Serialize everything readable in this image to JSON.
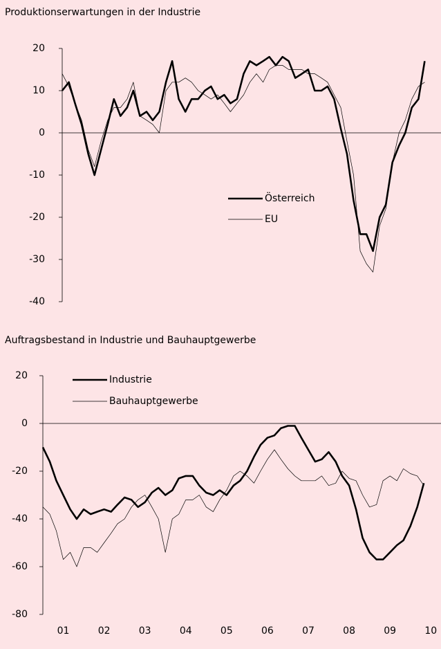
{
  "chart_data": [
    {
      "type": "line",
      "title": "Produktionserwartungen in der Industrie",
      "x": [
        2001,
        2001.17,
        2001.33,
        2001.5,
        2001.67,
        2001.83,
        2002,
        2002.17,
        2002.33,
        2002.5,
        2002.67,
        2002.83,
        2003,
        2003.17,
        2003.33,
        2003.5,
        2003.67,
        2003.83,
        2004,
        2004.17,
        2004.33,
        2004.5,
        2004.67,
        2004.83,
        2005,
        2005.17,
        2005.33,
        2005.5,
        2005.67,
        2005.83,
        2006,
        2006.17,
        2006.33,
        2006.5,
        2006.67,
        2006.83,
        2007,
        2007.17,
        2007.33,
        2007.5,
        2007.67,
        2007.83,
        2008,
        2008.17,
        2008.33,
        2008.5,
        2008.67,
        2008.83,
        2009,
        2009.17,
        2009.33,
        2009.5,
        2009.67,
        2009.83,
        2010,
        2010.17,
        2010.33
      ],
      "series": [
        {
          "name": "Österreich",
          "color": "#000000",
          "values": [
            10,
            12,
            7,
            2,
            -5,
            -10,
            -4,
            2,
            8,
            4,
            6,
            10,
            4,
            5,
            3,
            5,
            12,
            17,
            8,
            5,
            8,
            8,
            10,
            11,
            8,
            9,
            7,
            8,
            14,
            17,
            16,
            17,
            18,
            16,
            18,
            17,
            13,
            14,
            15,
            10,
            10,
            11,
            8,
            1,
            -5,
            -16,
            -24,
            -24,
            -28,
            -20,
            -17,
            -7,
            -3,
            0,
            6,
            8,
            17
          ]
        },
        {
          "name": "EU",
          "color": "#000000",
          "values": [
            14,
            11,
            7,
            3,
            -4,
            -8,
            -2,
            3,
            6,
            6,
            8,
            12,
            4,
            3,
            2,
            0,
            10,
            12,
            12,
            13,
            12,
            10,
            9,
            8,
            9,
            7,
            5,
            7,
            9,
            12,
            14,
            12,
            15,
            16,
            16,
            15,
            15,
            15,
            14,
            14,
            13,
            12,
            9,
            6,
            -2,
            -10,
            -28,
            -31,
            -33,
            -22,
            -18,
            -7,
            0,
            3,
            8,
            11,
            12
          ]
        }
      ],
      "xlim": [
        2001,
        2010.75
      ],
      "ylim": [
        -40,
        20
      ],
      "yticks": [
        -40,
        -30,
        -20,
        -10,
        0,
        10,
        20
      ]
    },
    {
      "type": "line",
      "title": "Auftragsbestand in Industrie und Bauhauptgewerbe",
      "x": [
        2001,
        2001.17,
        2001.33,
        2001.5,
        2001.67,
        2001.83,
        2002,
        2002.17,
        2002.33,
        2002.5,
        2002.67,
        2002.83,
        2003,
        2003.17,
        2003.33,
        2003.5,
        2003.67,
        2003.83,
        2004,
        2004.17,
        2004.33,
        2004.5,
        2004.67,
        2004.83,
        2005,
        2005.17,
        2005.33,
        2005.5,
        2005.67,
        2005.83,
        2006,
        2006.17,
        2006.33,
        2006.5,
        2006.67,
        2006.83,
        2007,
        2007.17,
        2007.33,
        2007.5,
        2007.67,
        2007.83,
        2008,
        2008.17,
        2008.33,
        2008.5,
        2008.67,
        2008.83,
        2009,
        2009.17,
        2009.33,
        2009.5,
        2009.67,
        2009.83,
        2010,
        2010.17,
        2010.33
      ],
      "series": [
        {
          "name": "Industrie",
          "color": "#000000",
          "values": [
            -10,
            -16,
            -24,
            -30,
            -36,
            -40,
            -36,
            -38,
            -37,
            -36,
            -37,
            -34,
            -31,
            -32,
            -35,
            -33,
            -29,
            -27,
            -30,
            -28,
            -23,
            -22,
            -22,
            -26,
            -29,
            -30,
            -28,
            -30,
            -26,
            -24,
            -20,
            -14,
            -9,
            -6,
            -5,
            -2,
            -1,
            -1,
            -6,
            -11,
            -16,
            -15,
            -12,
            -16,
            -22,
            -26,
            -36,
            -48,
            -54,
            -57,
            -57,
            -54,
            -51,
            -49,
            -43,
            -35,
            -25
          ]
        },
        {
          "name": "Bauhauptgewerbe",
          "color": "#000000",
          "values": [
            -35,
            -38,
            -45,
            -57,
            -54,
            -60,
            -52,
            -52,
            -54,
            -50,
            -46,
            -42,
            -40,
            -35,
            -32,
            -30,
            -35,
            -40,
            -54,
            -40,
            -38,
            -32,
            -32,
            -30,
            -35,
            -37,
            -32,
            -28,
            -22,
            -20,
            -22,
            -25,
            -20,
            -15,
            -11,
            -15,
            -19,
            -22,
            -24,
            -24,
            -24,
            -22,
            -26,
            -25,
            -20,
            -23,
            -24,
            -30,
            -35,
            -34,
            -24,
            -22,
            -24,
            -19,
            -21,
            -22,
            -26
          ]
        }
      ],
      "xlim": [
        2001,
        2010.75
      ],
      "ylim": [
        -80,
        20
      ],
      "yticks": [
        -80,
        -60,
        -40,
        -20,
        0,
        20
      ],
      "xticks": [
        {
          "value": 2001.5,
          "label": "01"
        },
        {
          "value": 2002.5,
          "label": "02"
        },
        {
          "value": 2003.5,
          "label": "03"
        },
        {
          "value": 2004.5,
          "label": "04"
        },
        {
          "value": 2005.5,
          "label": "05"
        },
        {
          "value": 2006.5,
          "label": "06"
        },
        {
          "value": 2007.5,
          "label": "07"
        },
        {
          "value": 2008.5,
          "label": "08"
        },
        {
          "value": 2009.5,
          "label": "09"
        },
        {
          "value": 2010.5,
          "label": "10"
        }
      ]
    }
  ]
}
